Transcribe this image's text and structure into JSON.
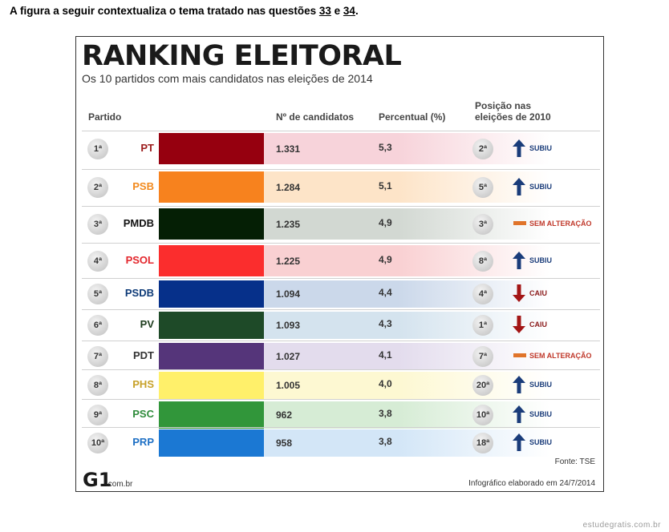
{
  "intro": {
    "text_before": "A figura a seguir contextualiza o tema tratado nas questões ",
    "q1": "33",
    "mid": " e ",
    "q2": "34",
    "end": "."
  },
  "title": "RANKING ELEITORAL",
  "subtitle": "Os 10 partidos com mais candidatos nas eleições de 2014",
  "headers": {
    "partido": "Partido",
    "candidatos": "Nº de candidatos",
    "percentual": "Percentual (%)",
    "posicao_line1": "Posição nas",
    "posicao_line2": "eleições de 2010"
  },
  "rows": [
    {
      "rank": "1ª",
      "party": "PT",
      "party_color": "#9b1b1b",
      "swatch": "#96000f",
      "tint": "#f7d3da",
      "count": "1.331",
      "pct": "5,3",
      "pos": "2ª",
      "status": "SUBIU",
      "dir": "up"
    },
    {
      "rank": "2ª",
      "party": "PSB",
      "party_color": "#f28a1e",
      "swatch": "#f7821e",
      "tint": "#fde4c8",
      "count": "1.284",
      "pct": "5,1",
      "pos": "5ª",
      "status": "SUBIU",
      "dir": "up"
    },
    {
      "rank": "3ª",
      "party": "PMDB",
      "party_color": "#111111",
      "swatch": "#051f05",
      "tint": "#d2d8d2",
      "count": "1.235",
      "pct": "4,9",
      "pos": "3ª",
      "status": "SEM ALTERAÇÃO",
      "dir": "same"
    },
    {
      "rank": "4ª",
      "party": "PSOL",
      "party_color": "#e3262c",
      "swatch": "#fb2d2d",
      "tint": "#f9d0d2",
      "count": "1.225",
      "pct": "4,9",
      "pos": "8ª",
      "status": "SUBIU",
      "dir": "up"
    },
    {
      "rank": "5ª",
      "party": "PSDB",
      "party_color": "#0e3b78",
      "swatch": "#06308a",
      "tint": "#cbd8ea",
      "count": "1.094",
      "pct": "4,4",
      "pos": "4ª",
      "status": "CAIU",
      "dir": "down"
    },
    {
      "rank": "6ª",
      "party": "PV",
      "party_color": "#1e3d1e",
      "swatch": "#1e4a28",
      "tint": "#d4e3ee",
      "count": "1.093",
      "pct": "4,3",
      "pos": "1ª",
      "status": "CAIU",
      "dir": "down"
    },
    {
      "rank": "7ª",
      "party": "PDT",
      "party_color": "#333333",
      "swatch": "#55357a",
      "tint": "#e3dced",
      "count": "1.027",
      "pct": "4,1",
      "pos": "7ª",
      "status": "SEM ALTERAÇÃO",
      "dir": "same"
    },
    {
      "rank": "8ª",
      "party": "PHS",
      "party_color": "#c7a129",
      "swatch": "#fff06a",
      "tint": "#fdf8d2",
      "count": "1.005",
      "pct": "4,0",
      "pos": "20ª",
      "status": "SUBIU",
      "dir": "up"
    },
    {
      "rank": "9ª",
      "party": "PSC",
      "party_color": "#2e8b3a",
      "swatch": "#31963a",
      "tint": "#d6ecd5",
      "count": "962",
      "pct": "3,8",
      "pos": "10ª",
      "status": "SUBIU",
      "dir": "up"
    },
    {
      "rank": "10ª",
      "party": "PRP",
      "party_color": "#1d6fc4",
      "swatch": "#1b78d3",
      "tint": "#d3e6f7",
      "count": "958",
      "pct": "3,8",
      "pos": "18ª",
      "status": "SUBIU",
      "dir": "up"
    }
  ],
  "fonte": "Fonte: TSE",
  "logo": "G1",
  "logo_domain": ".com.br",
  "infografico": "Infográfico elaborado em 24/7/2014",
  "watermark": "estudegratis.com.br",
  "colors": {
    "arrow_up": "#1a3c7a",
    "arrow_down": "#a31515",
    "dash": "#e0742a"
  }
}
